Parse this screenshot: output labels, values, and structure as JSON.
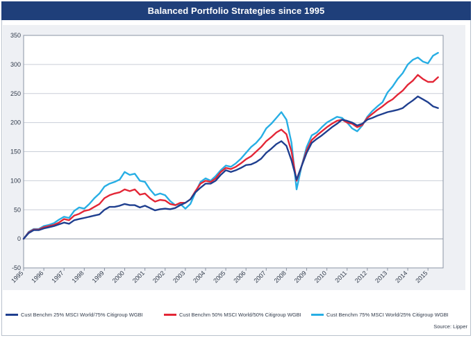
{
  "title": "Balanced Portfolio Strategies since 1995",
  "source": "Source: Lipper",
  "chart_data": {
    "type": "line",
    "title": "Balanced Portfolio Strategies since 1995",
    "xlabel": "",
    "ylabel": "",
    "ylim": [
      -50,
      350
    ],
    "xlim": [
      1995.0,
      2015.75
    ],
    "yticks": [
      -50,
      0,
      50,
      100,
      150,
      200,
      250,
      300,
      350
    ],
    "xtick_labels": [
      "1995",
      "1996",
      "1997",
      "1998",
      "1999",
      "2000",
      "2001",
      "2002",
      "2003",
      "2004",
      "2005",
      "2006",
      "2007",
      "2008",
      "2009",
      "2010",
      "2011",
      "2012",
      "2013",
      "2014",
      "2015"
    ],
    "grid": true,
    "legend_position": "bottom",
    "series": [
      {
        "name": "Cust Benchm 25% MSCI World/75% Citigroup WGBI",
        "color": "#1f3f8f",
        "x": [
          1995.0,
          1995.25,
          1995.5,
          1995.75,
          1996.0,
          1996.25,
          1996.5,
          1996.75,
          1997.0,
          1997.25,
          1997.5,
          1997.75,
          1998.0,
          1998.25,
          1998.5,
          1998.75,
          1999.0,
          1999.25,
          1999.5,
          1999.75,
          2000.0,
          2000.25,
          2000.5,
          2000.75,
          2001.0,
          2001.25,
          2001.5,
          2001.75,
          2002.0,
          2002.25,
          2002.5,
          2002.75,
          2003.0,
          2003.25,
          2003.5,
          2003.75,
          2004.0,
          2004.25,
          2004.5,
          2004.75,
          2005.0,
          2005.25,
          2005.5,
          2005.75,
          2006.0,
          2006.25,
          2006.5,
          2006.75,
          2007.0,
          2007.25,
          2007.5,
          2007.75,
          2008.0,
          2008.25,
          2008.5,
          2008.75,
          2009.0,
          2009.25,
          2009.5,
          2009.75,
          2010.0,
          2010.25,
          2010.5,
          2010.75,
          2011.0,
          2011.25,
          2011.5,
          2011.75,
          2012.0,
          2012.25,
          2012.5,
          2012.75,
          2013.0,
          2013.25,
          2013.5,
          2013.75,
          2014.0,
          2014.25,
          2014.5,
          2014.75,
          2015.0,
          2015.25,
          2015.5
        ],
        "values": [
          0,
          10,
          15,
          15,
          18,
          20,
          22,
          25,
          28,
          26,
          32,
          34,
          36,
          38,
          40,
          42,
          50,
          55,
          55,
          57,
          60,
          58,
          58,
          54,
          57,
          53,
          49,
          51,
          52,
          51,
          53,
          58,
          62,
          68,
          80,
          88,
          95,
          95,
          100,
          110,
          118,
          115,
          118,
          122,
          127,
          128,
          132,
          138,
          148,
          155,
          163,
          168,
          160,
          135,
          102,
          125,
          148,
          165,
          172,
          178,
          185,
          192,
          198,
          205,
          203,
          200,
          195,
          198,
          205,
          208,
          212,
          215,
          218,
          220,
          222,
          225,
          232,
          238,
          245,
          240,
          235,
          228,
          225
        ]
      },
      {
        "name": "Cust Benchm 50% MSCI World/50% Citigroup WGBI",
        "color": "#e32636",
        "x": [
          1995.0,
          1995.25,
          1995.5,
          1995.75,
          1996.0,
          1996.25,
          1996.5,
          1996.75,
          1997.0,
          1997.25,
          1997.5,
          1997.75,
          1998.0,
          1998.25,
          1998.5,
          1998.75,
          1999.0,
          1999.25,
          1999.5,
          1999.75,
          2000.0,
          2000.25,
          2000.5,
          2000.75,
          2001.0,
          2001.25,
          2001.5,
          2001.75,
          2002.0,
          2002.25,
          2002.5,
          2002.75,
          2003.0,
          2003.25,
          2003.5,
          2003.75,
          2004.0,
          2004.25,
          2004.5,
          2004.75,
          2005.0,
          2005.25,
          2005.5,
          2005.75,
          2006.0,
          2006.25,
          2006.5,
          2006.75,
          2007.0,
          2007.25,
          2007.5,
          2007.75,
          2008.0,
          2008.25,
          2008.5,
          2008.75,
          2009.0,
          2009.25,
          2009.5,
          2009.75,
          2010.0,
          2010.25,
          2010.5,
          2010.75,
          2011.0,
          2011.25,
          2011.5,
          2011.75,
          2012.0,
          2012.25,
          2012.5,
          2012.75,
          2013.0,
          2013.25,
          2013.5,
          2013.75,
          2014.0,
          2014.25,
          2014.5,
          2014.75,
          2015.0,
          2015.25,
          2015.5
        ],
        "values": [
          0,
          11,
          16,
          16,
          20,
          22,
          24,
          28,
          34,
          32,
          40,
          43,
          48,
          50,
          55,
          60,
          70,
          75,
          78,
          80,
          85,
          82,
          85,
          76,
          78,
          70,
          64,
          67,
          66,
          60,
          58,
          62,
          62,
          68,
          82,
          95,
          100,
          98,
          104,
          115,
          122,
          120,
          124,
          130,
          137,
          142,
          150,
          158,
          168,
          175,
          183,
          188,
          180,
          150,
          100,
          125,
          152,
          170,
          178,
          185,
          192,
          198,
          203,
          205,
          200,
          198,
          192,
          196,
          208,
          215,
          222,
          228,
          235,
          240,
          248,
          255,
          265,
          272,
          282,
          275,
          270,
          270,
          278
        ]
      },
      {
        "name": "Cust Benchm 75% MSCI World/25% Citigroup WGBI",
        "color": "#27aee4",
        "x": [
          1995.0,
          1995.25,
          1995.5,
          1995.75,
          1996.0,
          1996.25,
          1996.5,
          1996.75,
          1997.0,
          1997.25,
          1997.5,
          1997.75,
          1998.0,
          1998.25,
          1998.5,
          1998.75,
          1999.0,
          1999.25,
          1999.5,
          1999.75,
          2000.0,
          2000.25,
          2000.5,
          2000.75,
          2001.0,
          2001.25,
          2001.5,
          2001.75,
          2002.0,
          2002.25,
          2002.5,
          2002.75,
          2003.0,
          2003.25,
          2003.5,
          2003.75,
          2004.0,
          2004.25,
          2004.5,
          2004.75,
          2005.0,
          2005.25,
          2005.5,
          2005.75,
          2006.0,
          2006.25,
          2006.5,
          2006.75,
          2007.0,
          2007.25,
          2007.5,
          2007.75,
          2008.0,
          2008.25,
          2008.5,
          2008.75,
          2009.0,
          2009.25,
          2009.5,
          2009.75,
          2010.0,
          2010.25,
          2010.5,
          2010.75,
          2011.0,
          2011.25,
          2011.5,
          2011.75,
          2012.0,
          2012.25,
          2012.5,
          2012.75,
          2013.0,
          2013.25,
          2013.5,
          2013.75,
          2014.0,
          2014.25,
          2014.5,
          2014.75,
          2015.0,
          2015.25,
          2015.5
        ],
        "values": [
          0,
          12,
          17,
          17,
          22,
          24,
          27,
          33,
          38,
          36,
          48,
          54,
          52,
          60,
          70,
          78,
          90,
          95,
          98,
          102,
          115,
          110,
          112,
          100,
          98,
          85,
          75,
          78,
          75,
          65,
          58,
          60,
          52,
          60,
          80,
          98,
          104,
          100,
          108,
          118,
          126,
          124,
          130,
          138,
          148,
          158,
          165,
          175,
          190,
          198,
          208,
          218,
          205,
          165,
          85,
          125,
          158,
          178,
          183,
          192,
          200,
          205,
          210,
          208,
          200,
          190,
          185,
          195,
          210,
          220,
          228,
          235,
          252,
          262,
          275,
          285,
          300,
          308,
          312,
          305,
          302,
          315,
          320
        ]
      }
    ]
  }
}
